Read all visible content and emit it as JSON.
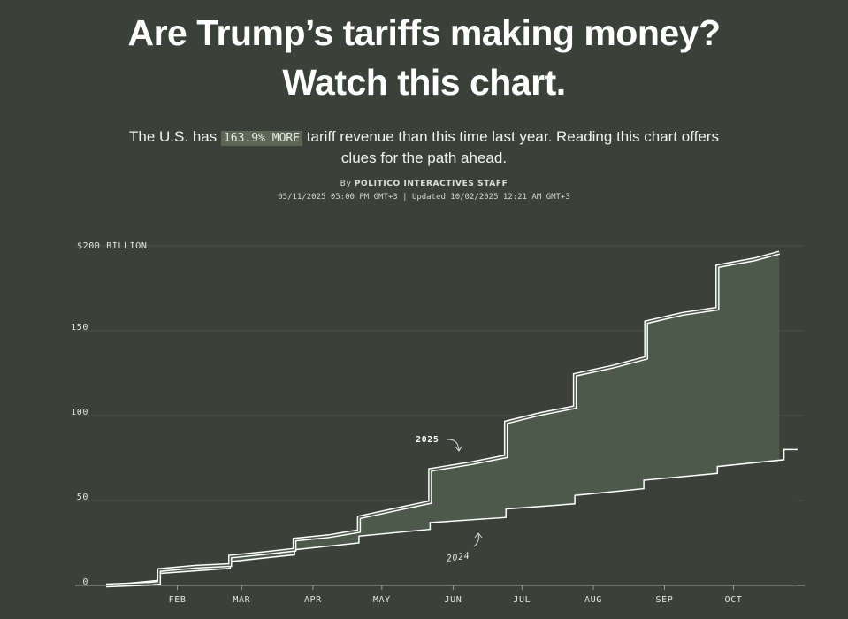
{
  "header": {
    "title_lines": [
      "Are Trump’s tariffs making money?",
      "Watch this chart."
    ],
    "subtitle_before": "The U.S. has",
    "subtitle_highlight": "163.9% MORE",
    "subtitle_after": "tariff revenue than this time last year. Reading this chart offers clues for the path ahead.",
    "byline_prefix": "By",
    "byline_author": "POLITICO INTERACTIVES STAFF",
    "dates": "05/11/2025 05:00 PM GMT+3 | Updated 10/02/2025 12:21 AM GMT+3"
  },
  "chart_data": {
    "type": "line",
    "series": [
      {
        "name": "2025",
        "color": "#ffffff",
        "x": [
          1,
          20,
          24,
          24,
          40,
          55,
          55,
          70,
          83,
          83,
          98,
          111,
          111,
          128,
          142,
          142,
          160,
          175,
          175,
          190,
          205,
          205,
          222,
          236,
          236,
          252,
          267,
          267,
          283,
          294
        ],
        "values": [
          0,
          1,
          1.5,
          9,
          11,
          12,
          17,
          19,
          21,
          27,
          29,
          32,
          40,
          45,
          49,
          68,
          72,
          76,
          96,
          101,
          105,
          124,
          129,
          134,
          155,
          160,
          163,
          188,
          192,
          196
        ]
      },
      {
        "name": "2024",
        "color": "#ffffff",
        "x": [
          1,
          24,
          24,
          55,
          55,
          83,
          83,
          111,
          111,
          142,
          142,
          175,
          175,
          205,
          205,
          235,
          235,
          267,
          267,
          296,
          296,
          302
        ],
        "values": [
          0,
          3,
          7,
          10,
          14,
          18,
          21,
          25,
          29,
          33,
          37,
          40,
          45,
          48,
          53,
          57,
          62,
          66,
          70,
          74,
          80,
          80
        ]
      }
    ],
    "fill_color": "#4d5a4b",
    "xlim": [
      1,
      305
    ],
    "xticks": [
      {
        "value": 32,
        "label": "FEB"
      },
      {
        "value": 60,
        "label": "MAR"
      },
      {
        "value": 91,
        "label": "APR"
      },
      {
        "value": 121,
        "label": "MAY"
      },
      {
        "value": 152,
        "label": "JUN"
      },
      {
        "value": 182,
        "label": "JUL"
      },
      {
        "value": 213,
        "label": "AUG"
      },
      {
        "value": 244,
        "label": "SEP"
      },
      {
        "value": 274,
        "label": "OCT"
      }
    ],
    "ylim": [
      0,
      200
    ],
    "yticks": [
      0,
      50,
      100,
      150,
      {
        "value": 200,
        "label": "$200 BILLION"
      }
    ],
    "grid": true
  }
}
